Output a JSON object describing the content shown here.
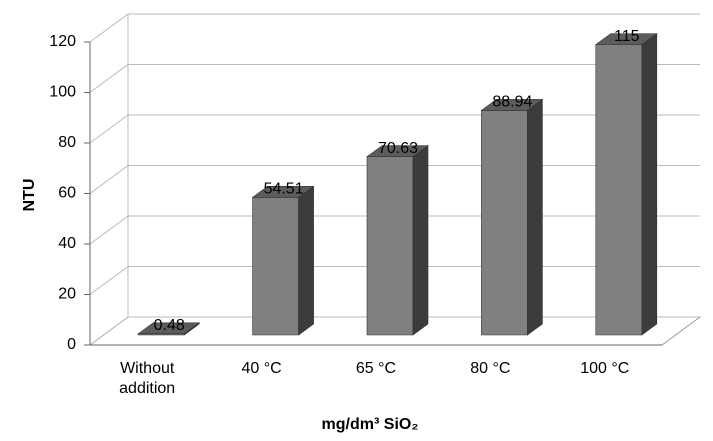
{
  "chart_data": {
    "type": "bar3d",
    "y_label": "NTU",
    "x_label": "mg/dm³   SiO₂",
    "categories": [
      "Without addition",
      "40 °C",
      "65 °C",
      "80 °C",
      "100 °C"
    ],
    "values": [
      0.48,
      54.51,
      70.63,
      88.94,
      115
    ],
    "color": "#808080",
    "ylim": [
      0,
      120
    ],
    "yticks": [
      0,
      20,
      40,
      60,
      80,
      100,
      120
    ],
    "grid": true
  }
}
